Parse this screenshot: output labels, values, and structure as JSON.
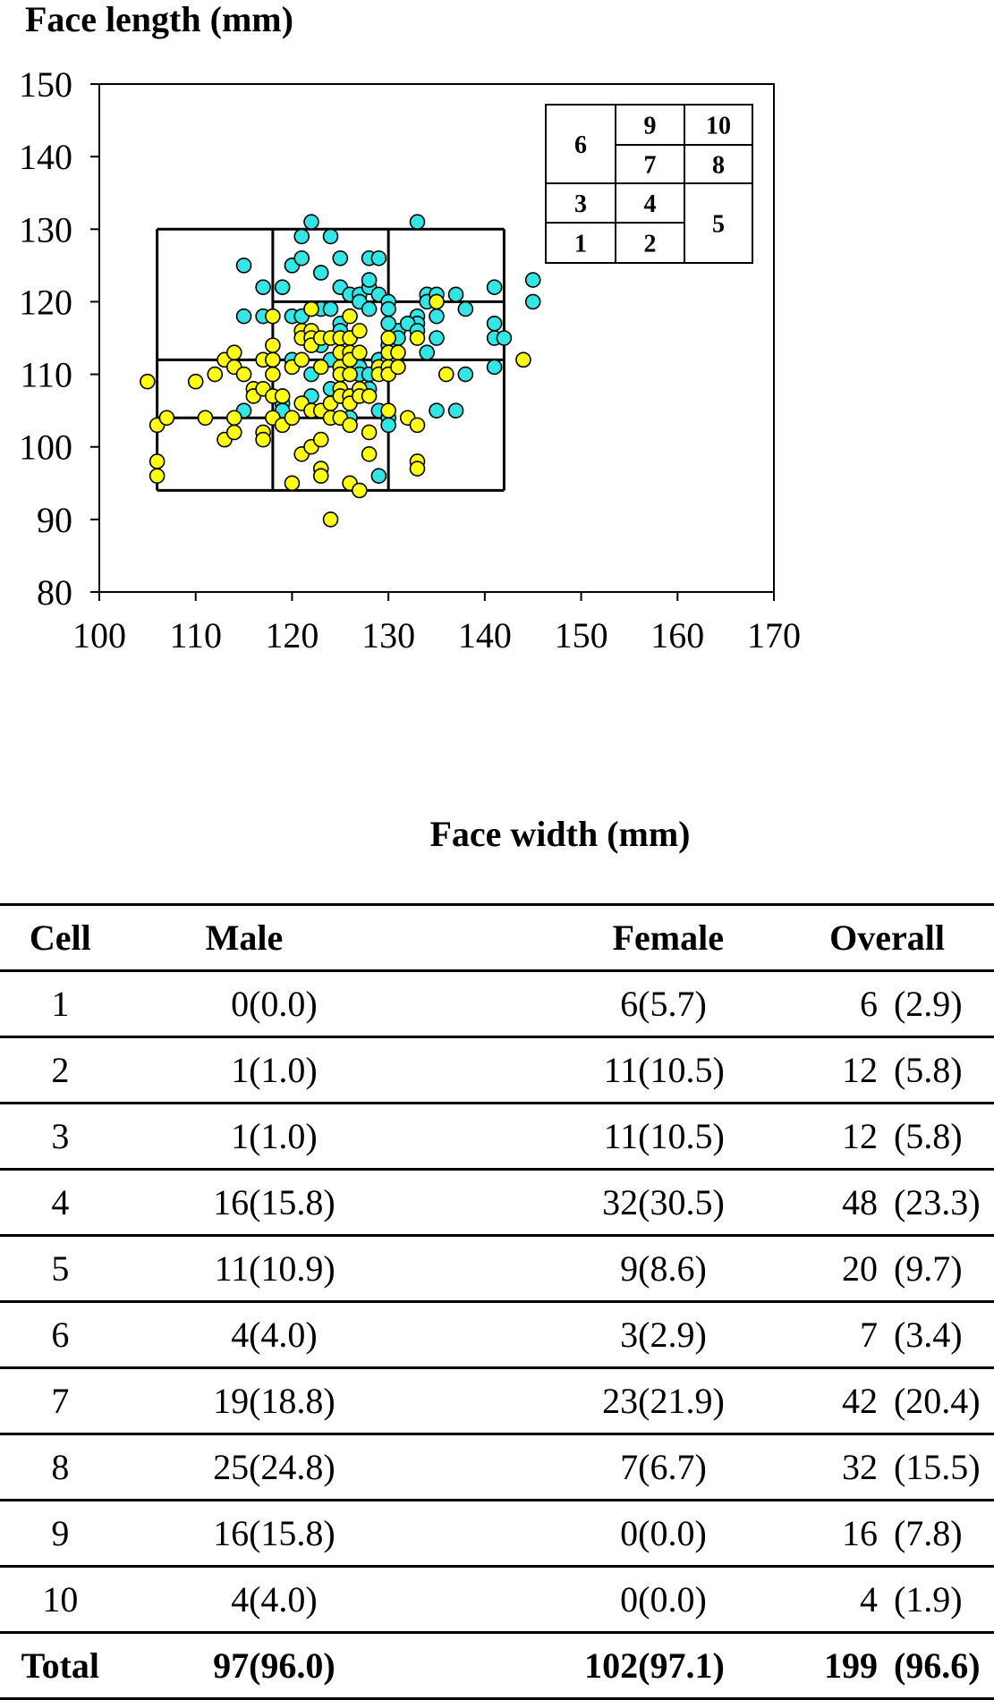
{
  "chart_data": {
    "type": "scatter",
    "xlabel": "Face width (mm)",
    "ylabel": "Face length (mm)",
    "xlim": [
      100,
      170
    ],
    "ylim": [
      80,
      150
    ],
    "xticks": [
      "100",
      "110",
      "120",
      "130",
      "140",
      "150",
      "160",
      "170"
    ],
    "yticks": [
      "80",
      "90",
      "100",
      "110",
      "120",
      "130",
      "140",
      "150"
    ],
    "series": [
      {
        "color": "#33e6e6",
        "points": [
          [
            115,
            125
          ],
          [
            117,
            122
          ],
          [
            119,
            122
          ],
          [
            120,
            125
          ],
          [
            121,
            126
          ],
          [
            122,
            131
          ],
          [
            121,
            129
          ],
          [
            123,
            124
          ],
          [
            124,
            129
          ],
          [
            125,
            126
          ],
          [
            128,
            126
          ],
          [
            129,
            126
          ],
          [
            133,
            131
          ],
          [
            115,
            118
          ],
          [
            117,
            118
          ],
          [
            120,
            118
          ],
          [
            121,
            118
          ],
          [
            122,
            119
          ],
          [
            123,
            119
          ],
          [
            124,
            119
          ],
          [
            125,
            122
          ],
          [
            126,
            121
          ],
          [
            127,
            121
          ],
          [
            127,
            120
          ],
          [
            128,
            122
          ],
          [
            128,
            123
          ],
          [
            128,
            119
          ],
          [
            129,
            121
          ],
          [
            130,
            120
          ],
          [
            130,
            119
          ],
          [
            131,
            116
          ],
          [
            133,
            118
          ],
          [
            133,
            117
          ],
          [
            134,
            121
          ],
          [
            134,
            120
          ],
          [
            135,
            121
          ],
          [
            135,
            120
          ],
          [
            135,
            118
          ],
          [
            137,
            121
          ],
          [
            138,
            119
          ],
          [
            141,
            122
          ],
          [
            141,
            117
          ],
          [
            141,
            115
          ],
          [
            142,
            115
          ],
          [
            145,
            123
          ],
          [
            145,
            120
          ],
          [
            118,
            112
          ],
          [
            119,
            106
          ],
          [
            119,
            105
          ],
          [
            120,
            112
          ],
          [
            122,
            110
          ],
          [
            122,
            107
          ],
          [
            123,
            114
          ],
          [
            124,
            112
          ],
          [
            124,
            108
          ],
          [
            125,
            117
          ],
          [
            125,
            116
          ],
          [
            126,
            115
          ],
          [
            126,
            110
          ],
          [
            127,
            111
          ],
          [
            127,
            110
          ],
          [
            128,
            110
          ],
          [
            128,
            108
          ],
          [
            129,
            112
          ],
          [
            129,
            111
          ],
          [
            129,
            105
          ],
          [
            130,
            117
          ],
          [
            130,
            114
          ],
          [
            130,
            112
          ],
          [
            130,
            104
          ],
          [
            130,
            103
          ],
          [
            131,
            115
          ],
          [
            132,
            117
          ],
          [
            133,
            116
          ],
          [
            134,
            113
          ],
          [
            135,
            115
          ],
          [
            135,
            105
          ],
          [
            137,
            105
          ],
          [
            138,
            110
          ],
          [
            141,
            111
          ],
          [
            115,
            105
          ],
          [
            126,
            104
          ],
          [
            129,
            96
          ]
        ]
      },
      {
        "color": "#ffff11",
        "points": [
          [
            105,
            109
          ],
          [
            106,
            103
          ],
          [
            106,
            98
          ],
          [
            106,
            96
          ],
          [
            107,
            104
          ],
          [
            110,
            109
          ],
          [
            111,
            104
          ],
          [
            112,
            110
          ],
          [
            113,
            101
          ],
          [
            113,
            112
          ],
          [
            114,
            113
          ],
          [
            114,
            111
          ],
          [
            114,
            104
          ],
          [
            114,
            102
          ],
          [
            115,
            110
          ],
          [
            116,
            108
          ],
          [
            116,
            107
          ],
          [
            117,
            108
          ],
          [
            117,
            112
          ],
          [
            117,
            102
          ],
          [
            117,
            101
          ],
          [
            118,
            118
          ],
          [
            118,
            114
          ],
          [
            118,
            112
          ],
          [
            118,
            110
          ],
          [
            118,
            107
          ],
          [
            118,
            104
          ],
          [
            119,
            107
          ],
          [
            119,
            103
          ],
          [
            120,
            111
          ],
          [
            120,
            104
          ],
          [
            120,
            95
          ],
          [
            121,
            112
          ],
          [
            121,
            106
          ],
          [
            121,
            99
          ],
          [
            121,
            116
          ],
          [
            121,
            115
          ],
          [
            122,
            119
          ],
          [
            122,
            116
          ],
          [
            122,
            115
          ],
          [
            122,
            114
          ],
          [
            122,
            105
          ],
          [
            122,
            100
          ],
          [
            123,
            115
          ],
          [
            123,
            111
          ],
          [
            123,
            105
          ],
          [
            123,
            101
          ],
          [
            123,
            97
          ],
          [
            123,
            96
          ],
          [
            124,
            115
          ],
          [
            124,
            106
          ],
          [
            124,
            104
          ],
          [
            124,
            90
          ],
          [
            125,
            115
          ],
          [
            125,
            113
          ],
          [
            125,
            111
          ],
          [
            125,
            110
          ],
          [
            125,
            108
          ],
          [
            125,
            107
          ],
          [
            125,
            104
          ],
          [
            126,
            118
          ],
          [
            126,
            115
          ],
          [
            126,
            113
          ],
          [
            126,
            112
          ],
          [
            126,
            110
          ],
          [
            126,
            107
          ],
          [
            126,
            106
          ],
          [
            126,
            103
          ],
          [
            126,
            95
          ],
          [
            127,
            116
          ],
          [
            127,
            113
          ],
          [
            127,
            108
          ],
          [
            127,
            107
          ],
          [
            127,
            94
          ],
          [
            128,
            107
          ],
          [
            128,
            102
          ],
          [
            128,
            99
          ],
          [
            129,
            111
          ],
          [
            129,
            110
          ],
          [
            130,
            115
          ],
          [
            130,
            113
          ],
          [
            130,
            111
          ],
          [
            130,
            110
          ],
          [
            130,
            105
          ],
          [
            131,
            113
          ],
          [
            131,
            111
          ],
          [
            132,
            104
          ],
          [
            133,
            115
          ],
          [
            133,
            103
          ],
          [
            133,
            98
          ],
          [
            133,
            97
          ],
          [
            135,
            120
          ],
          [
            136,
            110
          ],
          [
            144,
            112
          ]
        ]
      }
    ],
    "cell_grid": {
      "x_bounds": [
        106,
        118,
        130,
        142
      ],
      "y_bounds": [
        94,
        104,
        112,
        120,
        130
      ]
    },
    "inset_key": {
      "labels": [
        "1",
        "2",
        "3",
        "4",
        "5",
        "6",
        "7",
        "8",
        "9",
        "10"
      ]
    }
  },
  "table": {
    "headers": [
      "Cell",
      "Male",
      "Female",
      "Overall"
    ],
    "rows": [
      {
        "cell": "1",
        "male_n": "0",
        "male_p": "(0.0)",
        "female_n": "6",
        "female_p": "(5.7)",
        "overall_n": "6",
        "overall_p": "(2.9)"
      },
      {
        "cell": "2",
        "male_n": "1",
        "male_p": "(1.0)",
        "female_n": "11",
        "female_p": "(10.5)",
        "overall_n": "12",
        "overall_p": "(5.8)"
      },
      {
        "cell": "3",
        "male_n": "1",
        "male_p": "(1.0)",
        "female_n": "11",
        "female_p": "(10.5)",
        "overall_n": "12",
        "overall_p": "(5.8)"
      },
      {
        "cell": "4",
        "male_n": "16",
        "male_p": "(15.8)",
        "female_n": "32",
        "female_p": "(30.5)",
        "overall_n": "48",
        "overall_p": "(23.3)"
      },
      {
        "cell": "5",
        "male_n": "11",
        "male_p": "(10.9)",
        "female_n": "9",
        "female_p": "(8.6)",
        "overall_n": "20",
        "overall_p": "(9.7)"
      },
      {
        "cell": "6",
        "male_n": "4",
        "male_p": "(4.0)",
        "female_n": "3",
        "female_p": "(2.9)",
        "overall_n": "7",
        "overall_p": "(3.4)"
      },
      {
        "cell": "7",
        "male_n": "19",
        "male_p": "(18.8)",
        "female_n": "23",
        "female_p": "(21.9)",
        "overall_n": "42",
        "overall_p": "(20.4)"
      },
      {
        "cell": "8",
        "male_n": "25",
        "male_p": "(24.8)",
        "female_n": "7",
        "female_p": "(6.7)",
        "overall_n": "32",
        "overall_p": "(15.5)"
      },
      {
        "cell": "9",
        "male_n": "16",
        "male_p": "(15.8)",
        "female_n": "0",
        "female_p": "(0.0)",
        "overall_n": "16",
        "overall_p": "(7.8)"
      },
      {
        "cell": "10",
        "male_n": "4",
        "male_p": "(4.0)",
        "female_n": "0",
        "female_p": "(0.0)",
        "overall_n": "4",
        "overall_p": "(1.9)"
      }
    ],
    "total": {
      "cell": "Total",
      "male_n": "97",
      "male_p": "(96.0)",
      "female_n": "102",
      "female_p": "(97.1)",
      "overall_n": "199",
      "overall_p": "(96.6)"
    }
  }
}
